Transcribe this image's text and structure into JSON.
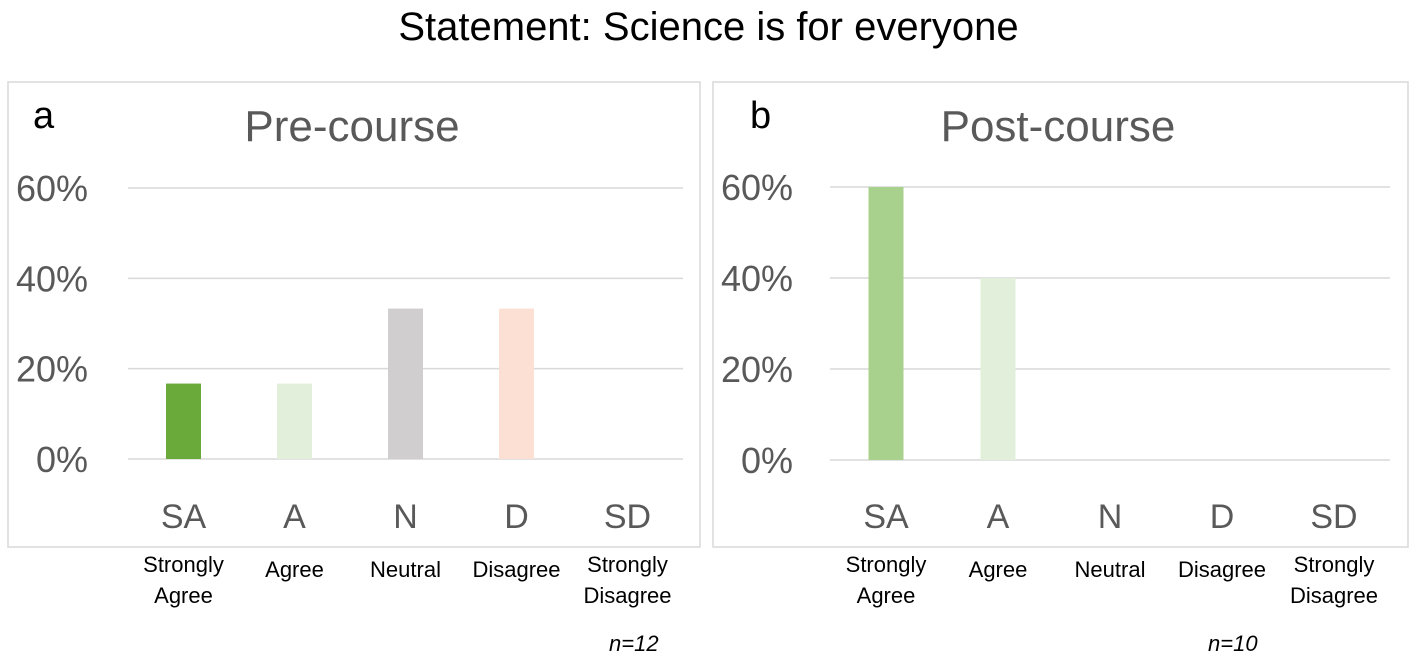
{
  "title": "Statement: Science is for everyone",
  "colors": {
    "frame": "#d9d9d9",
    "grid": "#d9d9d9",
    "muted_text": "#595959",
    "bars": [
      "#6aaa3a",
      "#e2efda",
      "#d0cece",
      "#fbe0d3",
      "#f2dcdb"
    ],
    "bars_post": [
      "#a9d18e",
      "#e2efda",
      "#d0cece",
      "#fbe0d3",
      "#f2dcdb"
    ]
  },
  "chart_data": [
    {
      "type": "bar",
      "panel_label": "a",
      "title": "Pre-course",
      "categories": [
        "SA",
        "A",
        "N",
        "D",
        "SD"
      ],
      "category_descriptions": [
        [
          "Strongly",
          "Agree"
        ],
        [
          "Agree"
        ],
        [
          "Neutral"
        ],
        [
          "Disagree"
        ],
        [
          "Strongly",
          "Disagree"
        ]
      ],
      "values": [
        0.167,
        0.167,
        0.333,
        0.333,
        0
      ],
      "yticks": [
        "0%",
        "20%",
        "40%",
        "60%"
      ],
      "ylim": [
        0,
        0.6
      ],
      "grid": true,
      "sample_size": "n=12"
    },
    {
      "type": "bar",
      "panel_label": "b",
      "title": "Post-course",
      "categories": [
        "SA",
        "A",
        "N",
        "D",
        "SD"
      ],
      "category_descriptions": [
        [
          "Strongly",
          "Agree"
        ],
        [
          "Agree"
        ],
        [
          "Neutral"
        ],
        [
          "Disagree"
        ],
        [
          "Strongly",
          "Disagree"
        ]
      ],
      "values": [
        0.6,
        0.4,
        0,
        0,
        0
      ],
      "yticks": [
        "0%",
        "20%",
        "40%",
        "60%"
      ],
      "ylim": [
        0,
        0.6
      ],
      "grid": true,
      "sample_size": "n=10"
    }
  ]
}
